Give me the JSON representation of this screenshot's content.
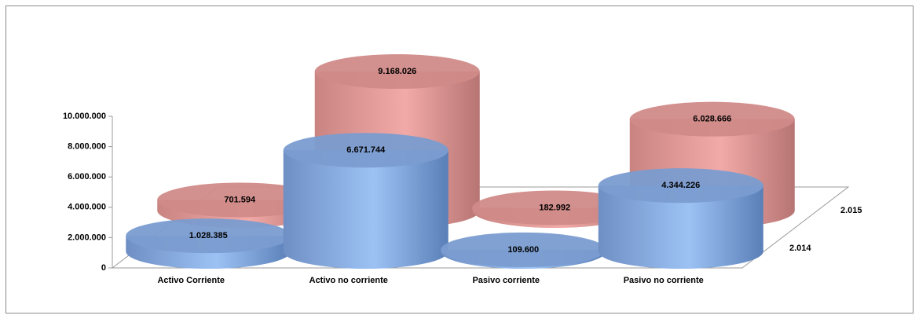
{
  "chart_data": {
    "type": "bar",
    "categories": [
      "Activo Corriente",
      "Activo no corriente",
      "Pasivo corriente",
      "Pasivo no corriente"
    ],
    "series": [
      {
        "name": "2.014",
        "color": "#7a9cd0",
        "values": [
          1028385,
          6671744,
          109600,
          4344226
        ],
        "value_labels": [
          "1.028.385",
          "6.671.744",
          "109.600",
          "4.344.226"
        ]
      },
      {
        "name": "2.015",
        "color": "#d08a88",
        "values": [
          701594,
          9168026,
          182992,
          6028666
        ],
        "value_labels": [
          "701.594",
          "9.168.026",
          "182.992",
          "6.028.666"
        ]
      }
    ],
    "ylim": [
      0,
      10000000
    ],
    "yticks": [
      0,
      {
        "value": 2000000,
        "label": "2.000.000"
      },
      {
        "value": 4000000,
        "label": "4.000.000"
      },
      {
        "value": 6000000,
        "label": "6.000.000"
      },
      {
        "value": 8000000,
        "label": "8.000.000"
      },
      {
        "value": 10000000,
        "label": "10.000.000"
      }
    ]
  }
}
